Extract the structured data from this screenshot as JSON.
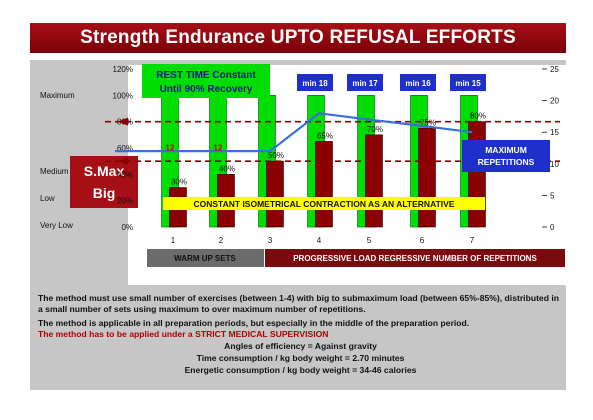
{
  "title": "Strength Endurance UPTO REFUSAL EFFORTS",
  "level_labels": {
    "maximum": "Maximum",
    "smax": "S.Max",
    "big": "Big",
    "medium": "Medium",
    "low": "Low",
    "very_low": "Very Low"
  },
  "rest_box": {
    "line1": "REST TIME Constant",
    "line2": "Until 90% Recovery"
  },
  "max_reps_box": {
    "line1": "MAXIMUM",
    "line2": "REPETITIONS"
  },
  "isometric_note": "CONSTANT ISOMETRICAL CONTRACTION AS AN ALTERNATIVE",
  "warmup_label": "WARM UP SETS",
  "progressive_label": "PROGRESSIVE LOAD REGRESSIVE NUMBER OF REPETITIONS",
  "colors": {
    "title_red": "#a80f16",
    "green_bar": "#00dd00",
    "load_bar": "#8b0000",
    "line": "#3a6fe0",
    "min_box": "#1f2fcc",
    "yellow": "#ffff00",
    "dashed": "#8b0000"
  },
  "chart_data": {
    "type": "bar",
    "categories": [
      "1",
      "2",
      "3",
      "4",
      "5",
      "6",
      "7"
    ],
    "y_left_ticks": [
      "0%",
      "20%",
      "40%",
      "60%",
      "80%",
      "100%",
      "120%"
    ],
    "y_right_ticks": [
      "0",
      "5",
      "10",
      "15",
      "20",
      "25"
    ],
    "ylim_left": [
      0,
      120
    ],
    "ylim_right": [
      0,
      25
    ],
    "series": [
      {
        "type": "bar",
        "values": [
          100,
          100,
          100,
          100,
          100,
          100,
          100
        ]
      },
      {
        "type": "bar",
        "values": [
          30,
          40,
          50,
          65,
          70,
          75,
          80
        ],
        "labels": [
          "30%",
          "40%",
          "50%",
          "65%",
          "70%",
          "75%",
          "80%"
        ]
      },
      {
        "type": "line",
        "axis": "right",
        "values": [
          12,
          12,
          12,
          18,
          17,
          16,
          15
        ]
      }
    ],
    "rep_labels": [
      {
        "category": "1",
        "text": "12"
      },
      {
        "category": "2",
        "text": "12"
      }
    ],
    "rest_minutes": [
      {
        "category": "4",
        "text": "min 18"
      },
      {
        "category": "5",
        "text": "min 17"
      },
      {
        "category": "6",
        "text": "min 16"
      },
      {
        "category": "7",
        "text": "min 15"
      }
    ],
    "reference_lines": [
      80,
      50
    ]
  },
  "notes": {
    "p1": "The method must use small number of exercises (between 1-4) with big to submaximum load (between 65%-85%), distributed in a small number of sets using maximum to over maximum number of repetitions.",
    "p2": "The method is applicable in all preparation periods, but especially in the middle of  the preparation period.",
    "p3": "The method has to be applied under a STRICT MEDICAL SUPERVISION",
    "p4": "Angles of efficiency = Against gravity",
    "p5": "Time consumption /  kg body weight = 2.70 minutes",
    "p6": "Energetic consumption /  kg body weight =  34-46 calories"
  }
}
